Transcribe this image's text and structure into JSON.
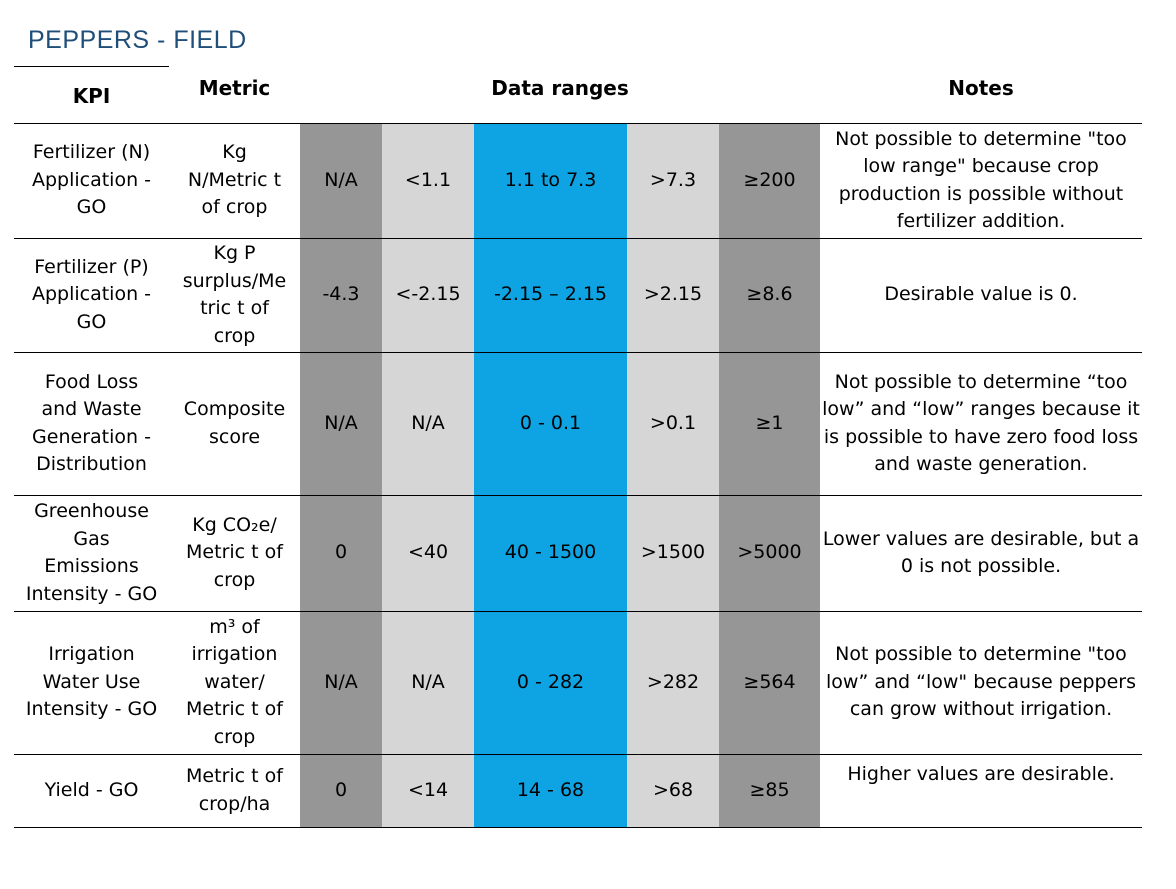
{
  "title": "PEPPERS - FIELD",
  "headers": {
    "kpi": "KPI",
    "metric": "Metric",
    "ranges": "Data ranges",
    "notes": "Notes"
  },
  "colors": {
    "title": "#1f4e79",
    "very_high_range": "#969696",
    "mid_range": "#d6d6d6",
    "desirable_range": "#0ea4e4"
  },
  "rows": [
    {
      "kpi": [
        "Fertilizer (N)",
        "Application -",
        "GO"
      ],
      "metric": [
        "Kg",
        "N/Metric t",
        "of crop"
      ],
      "ranges": [
        "N/A",
        "<1.1",
        "1.1 to 7.3",
        ">7.3",
        "≥200"
      ],
      "notes": "Not possible to determine \"too low range\" because crop production is possible without fertilizer addition."
    },
    {
      "kpi": [
        "Fertilizer (P)",
        "Application -",
        "GO"
      ],
      "metric": [
        "Kg P",
        "surplus/Me",
        "tric t of",
        "crop"
      ],
      "ranges": [
        "-4.3",
        "<-2.15",
        "-2.15 – 2.15",
        ">2.15",
        "≥8.6"
      ],
      "notes": "Desirable value is 0."
    },
    {
      "kpi": [
        "Food Loss",
        "and Waste",
        "Generation -",
        "Distribution"
      ],
      "metric": [
        "Composite",
        "score"
      ],
      "ranges": [
        "N/A",
        "N/A",
        "0 - 0.1",
        ">0.1",
        "≥1"
      ],
      "notes": "Not possible to determine “too low” and “low” ranges because it is possible to have zero food loss and waste generation."
    },
    {
      "kpi": [
        "Greenhouse",
        "Gas",
        "Emissions",
        "Intensity - GO"
      ],
      "metric": [
        "Kg CO₂e/",
        "Metric t of",
        "crop"
      ],
      "ranges": [
        "0",
        "<40",
        "40 - 1500",
        ">1500",
        ">5000"
      ],
      "notes": "Lower values are desirable, but a 0 is not possible."
    },
    {
      "kpi": [
        "Irrigation",
        "Water Use",
        "Intensity - GO"
      ],
      "metric": [
        "m³ of",
        "irrigation",
        "water/",
        "Metric t of",
        "crop"
      ],
      "ranges": [
        "N/A",
        "N/A",
        "0 - 282",
        ">282",
        "≥564"
      ],
      "notes": "Not possible to determine \"too low” and “low\" because peppers can grow without irrigation."
    },
    {
      "kpi": [
        "Yield - GO"
      ],
      "metric": [
        "Metric t of",
        "crop/ha"
      ],
      "ranges": [
        "0",
        "<14",
        "14 - 68",
        ">68",
        "≥85"
      ],
      "notes": "Higher values are desirable."
    }
  ]
}
